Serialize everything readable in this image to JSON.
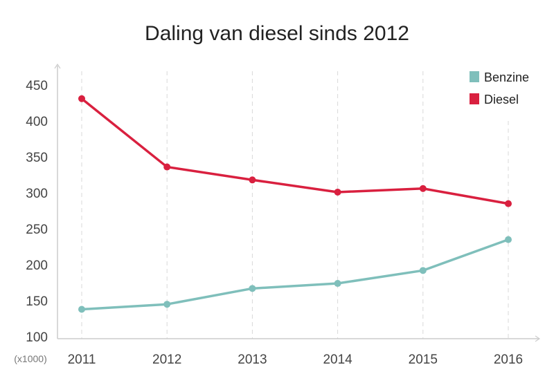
{
  "chart_data": {
    "type": "line",
    "title": "Daling van diesel sinds 2012",
    "xlabel": "",
    "ylabel": "",
    "y_unit_label": "(x1000)",
    "x": [
      "2011",
      "2012",
      "2013",
      "2014",
      "2015",
      "2016"
    ],
    "ylim": [
      100,
      450
    ],
    "yticks": [
      "100",
      "150",
      "200",
      "250",
      "300",
      "350",
      "400",
      "450"
    ],
    "grid": "vertical dashed",
    "legend_position": "top-right",
    "series": [
      {
        "name": "Benzine",
        "color": "#7fbfbb",
        "values": [
          138,
          145,
          167,
          174,
          192,
          235
        ]
      },
      {
        "name": "Diesel",
        "color": "#d9203f",
        "values": [
          431,
          336,
          318,
          301,
          306,
          285
        ]
      }
    ]
  }
}
